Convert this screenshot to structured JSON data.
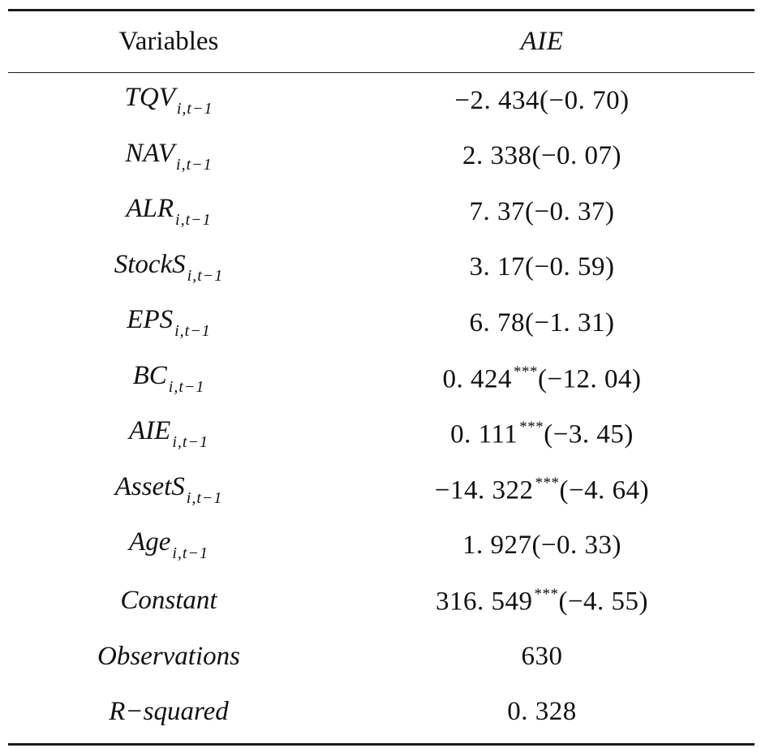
{
  "table": {
    "header": {
      "variables": "Variables",
      "dependent": "AIE"
    },
    "rows": [
      {
        "name": "TQV",
        "sub": "i,t−1",
        "coef": "−2. 434",
        "sig": "",
        "t": "(−0. 70)"
      },
      {
        "name": "NAV",
        "sub": "i,t−1",
        "coef": "2. 338",
        "sig": "",
        "t": "(−0. 07)"
      },
      {
        "name": "ALR",
        "sub": "i,t−1",
        "coef": "7. 37",
        "sig": "",
        "t": "(−0. 37)"
      },
      {
        "name": "StockS",
        "sub": "i,t−1",
        "coef": "3. 17",
        "sig": "",
        "t": "(−0. 59)"
      },
      {
        "name": "EPS",
        "sub": "i,t−1",
        "coef": "6. 78",
        "sig": "",
        "t": "(−1. 31)"
      },
      {
        "name": "BC",
        "sub": "i,t−1",
        "coef": "0. 424",
        "sig": "***",
        "t": "(−12. 04)"
      },
      {
        "name": "AIE",
        "sub": "i,t−1",
        "coef": "0. 111",
        "sig": "***",
        "t": "(−3. 45)"
      },
      {
        "name": "AssetS",
        "sub": "i,t−1",
        "coef": "−14. 322",
        "sig": "***",
        "t": "(−4. 64)"
      },
      {
        "name": "Age",
        "sub": "i,t−1",
        "coef": "1. 927",
        "sig": "",
        "t": "(−0. 33)"
      },
      {
        "name": "Constant",
        "sub": "",
        "coef": "316. 549",
        "sig": "***",
        "t": "(−4. 55)"
      },
      {
        "name": "Observations",
        "sub": "",
        "coef": "630",
        "sig": "",
        "t": ""
      },
      {
        "name": "R−squared",
        "sub": "",
        "coef": "0. 328",
        "sig": "",
        "t": ""
      }
    ]
  }
}
